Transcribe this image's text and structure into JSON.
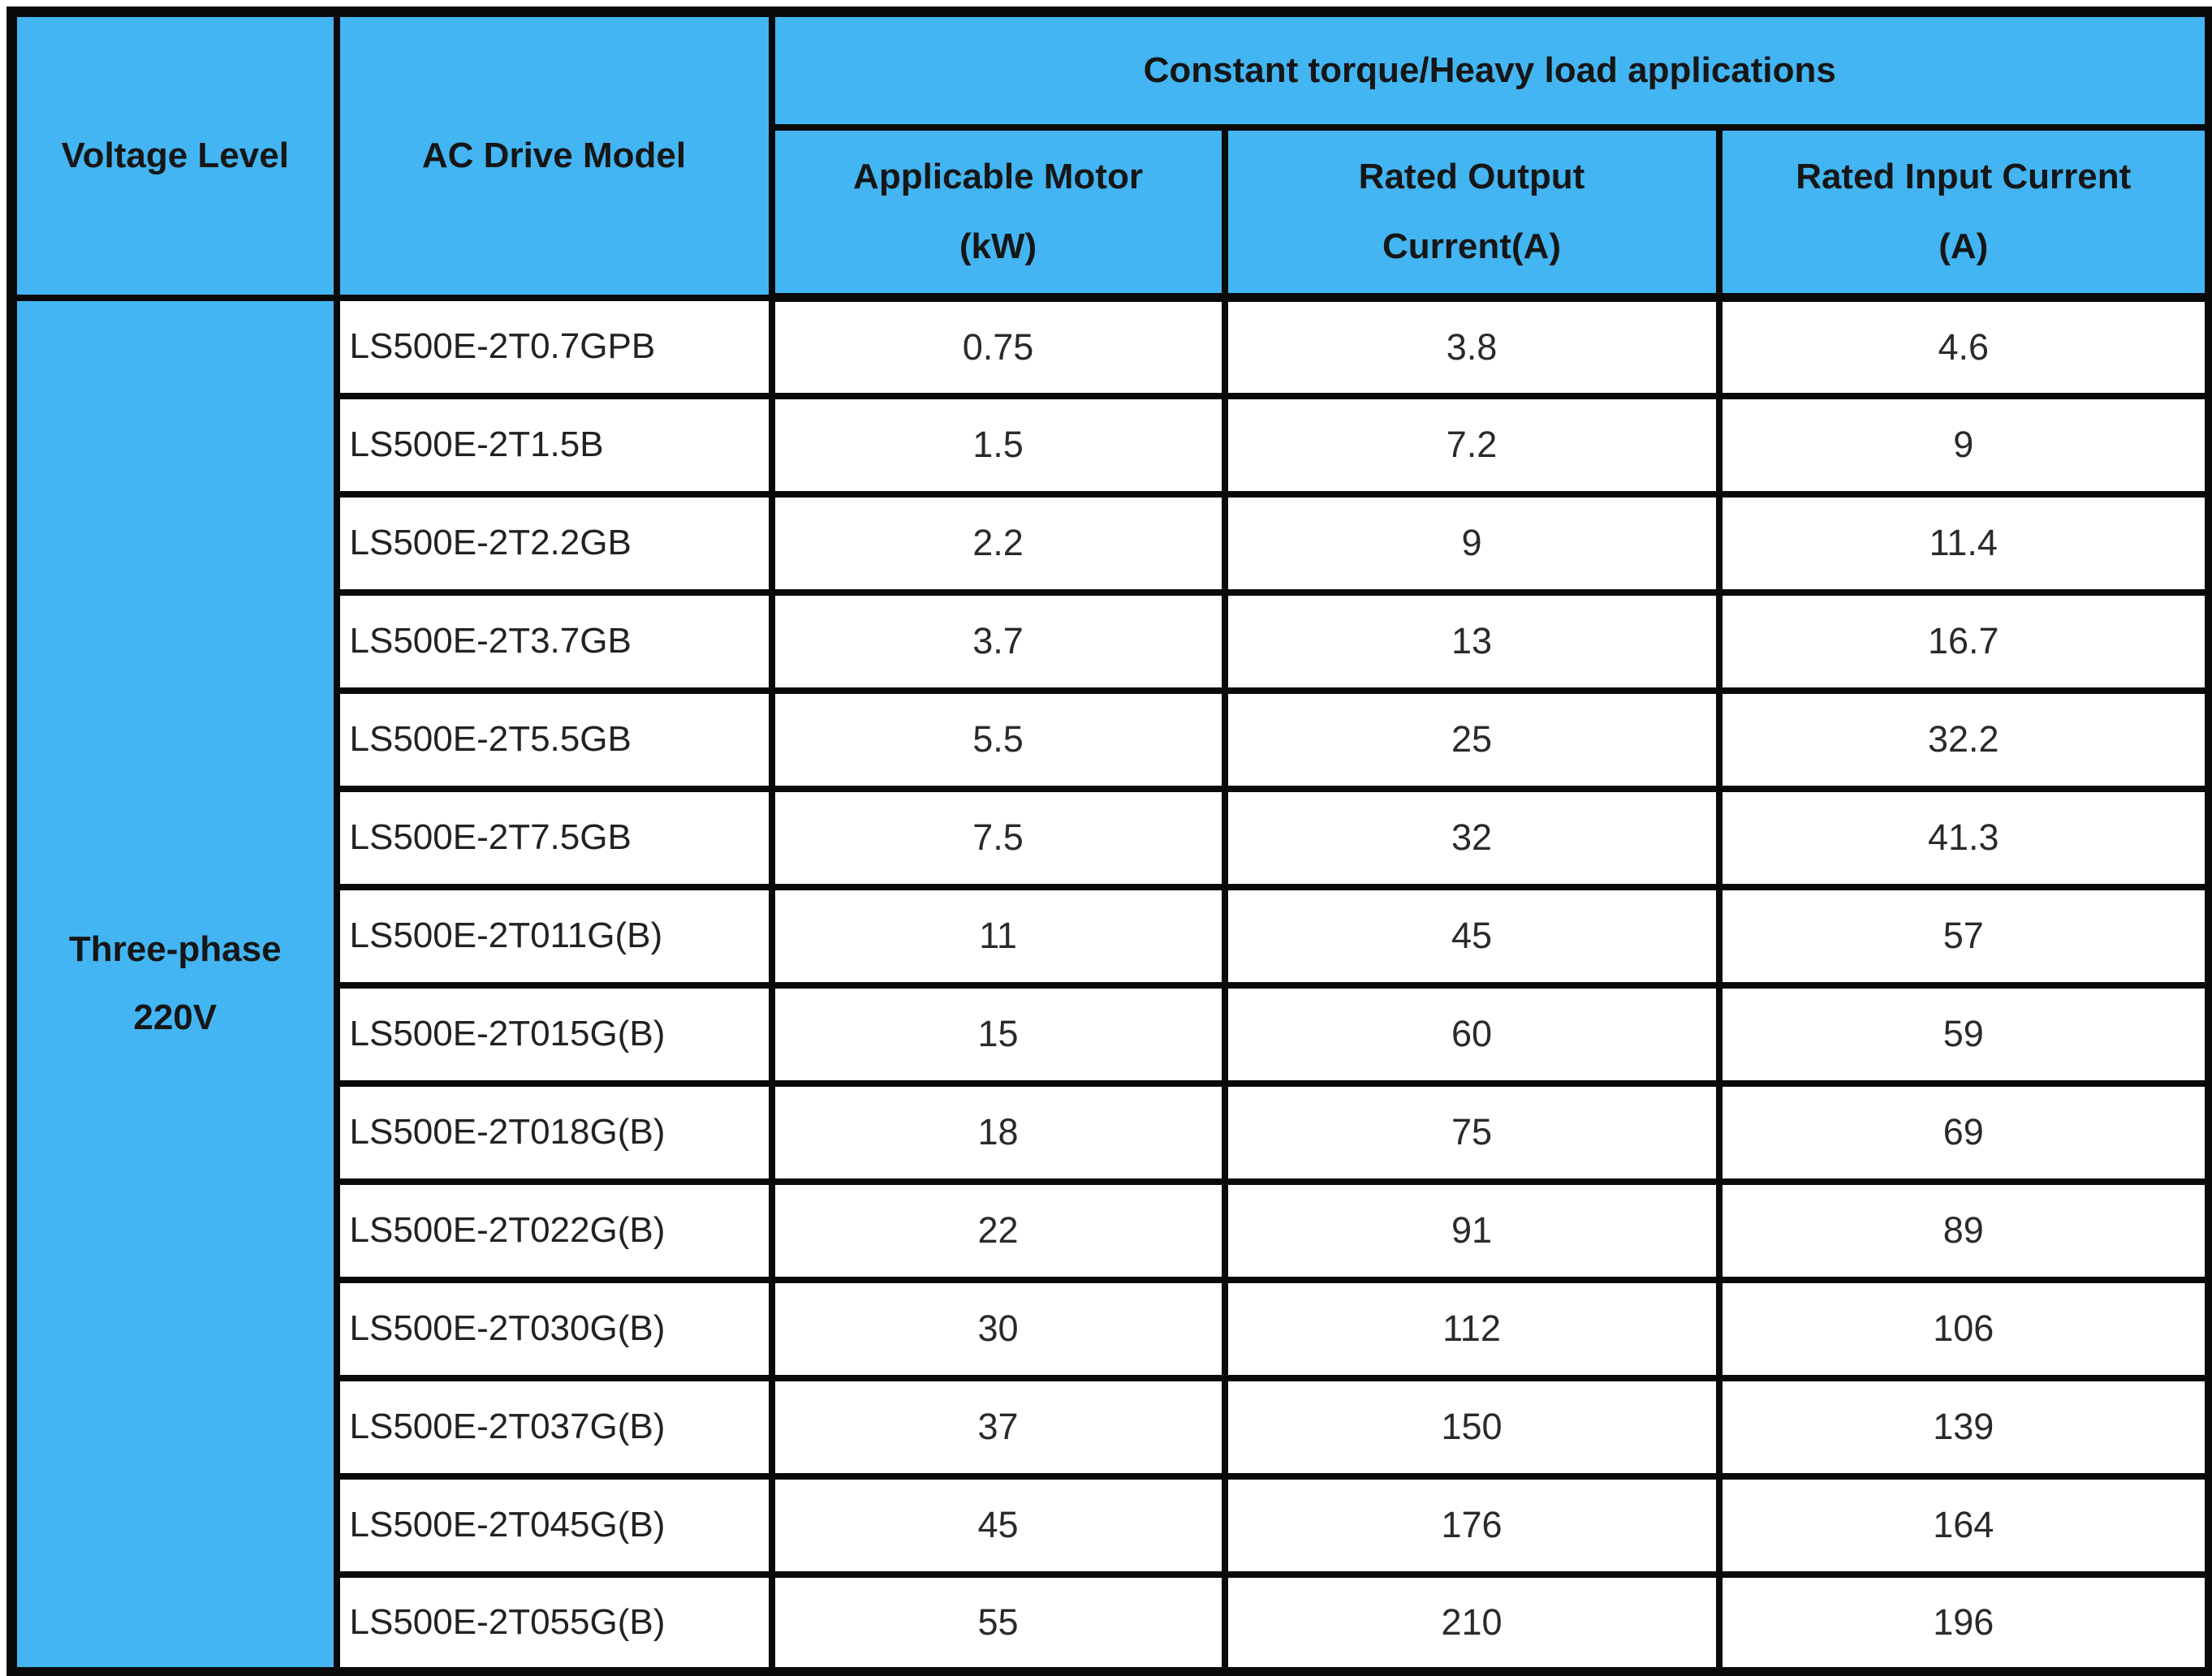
{
  "table": {
    "header": {
      "voltage_level": "Voltage Level",
      "ac_drive_model": "AC Drive Model",
      "group_title": "Constant torque/Heavy load applications",
      "col_motor": {
        "line1": "Applicable Motor",
        "line2": "(kW)"
      },
      "col_output": {
        "line1": "Rated Output",
        "line2": "Current(A)"
      },
      "col_input": {
        "line1": "Rated Input Current",
        "line2": "(A)"
      }
    },
    "voltage_group": {
      "line1": "Three-phase",
      "line2": "220V"
    },
    "rows": [
      {
        "model": "LS500E-2T0.7GPB",
        "motor_kw": "0.75",
        "output_a": "3.8",
        "input_a": "4.6"
      },
      {
        "model": "LS500E-2T1.5B",
        "motor_kw": "1.5",
        "output_a": "7.2",
        "input_a": "9"
      },
      {
        "model": "LS500E-2T2.2GB",
        "motor_kw": "2.2",
        "output_a": "9",
        "input_a": "11.4"
      },
      {
        "model": "LS500E-2T3.7GB",
        "motor_kw": "3.7",
        "output_a": "13",
        "input_a": "16.7"
      },
      {
        "model": "LS500E-2T5.5GB",
        "motor_kw": "5.5",
        "output_a": "25",
        "input_a": "32.2"
      },
      {
        "model": "LS500E-2T7.5GB",
        "motor_kw": "7.5",
        "output_a": "32",
        "input_a": "41.3"
      },
      {
        "model": "LS500E-2T011G(B)",
        "motor_kw": "11",
        "output_a": "45",
        "input_a": "57"
      },
      {
        "model": "LS500E-2T015G(B)",
        "motor_kw": "15",
        "output_a": "60",
        "input_a": "59"
      },
      {
        "model": "LS500E-2T018G(B)",
        "motor_kw": "18",
        "output_a": "75",
        "input_a": "69"
      },
      {
        "model": "LS500E-2T022G(B)",
        "motor_kw": "22",
        "output_a": "91",
        "input_a": "89"
      },
      {
        "model": "LS500E-2T030G(B)",
        "motor_kw": "30",
        "output_a": "112",
        "input_a": "106"
      },
      {
        "model": "LS500E-2T037G(B)",
        "motor_kw": "37",
        "output_a": "150",
        "input_a": "139"
      },
      {
        "model": "LS500E-2T045G(B)",
        "motor_kw": "45",
        "output_a": "176",
        "input_a": "164"
      },
      {
        "model": "LS500E-2T055G(B)",
        "motor_kw": "55",
        "output_a": "210",
        "input_a": "196"
      }
    ]
  },
  "colors": {
    "header_blue": "#43b5f2",
    "border_black": "#0a0a0a",
    "cell_white": "#ffffff",
    "text_dark": "#222222"
  }
}
